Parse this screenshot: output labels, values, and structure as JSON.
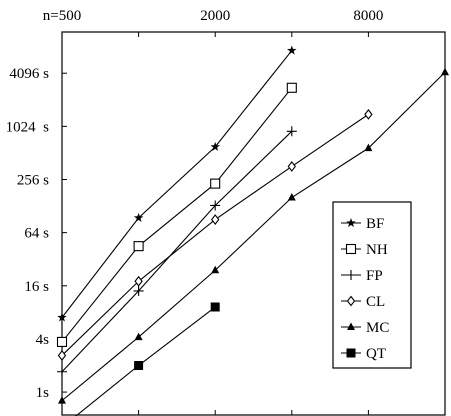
{
  "chart_data": {
    "type": "line",
    "title": "",
    "xlabel": "",
    "ylabel": "",
    "x_scale": "log2",
    "y_scale": "log2",
    "xlim": [
      500,
      16000
    ],
    "ylim": [
      0.55,
      12000
    ],
    "x_ticks": [
      {
        "value": 500,
        "label": "n=500"
      },
      {
        "value": 1000,
        "label": ""
      },
      {
        "value": 2000,
        "label": "2000"
      },
      {
        "value": 4000,
        "label": ""
      },
      {
        "value": 8000,
        "label": "8000"
      },
      {
        "value": 16000,
        "label": ""
      }
    ],
    "y_ticks": [
      {
        "value": 1,
        "label": "1s"
      },
      {
        "value": 4,
        "label": "4s"
      },
      {
        "value": 16,
        "label": "16 s"
      },
      {
        "value": 64,
        "label": "64 s"
      },
      {
        "value": 256,
        "label": "256 s"
      },
      {
        "value": 1024,
        "label": "1024  s"
      },
      {
        "value": 4096,
        "label": "4096 s"
      }
    ],
    "legend_position": "right",
    "series": [
      {
        "name": "BF",
        "marker": "star",
        "x": [
          500,
          1000,
          2000,
          4000
        ],
        "y": [
          7.0,
          94,
          600,
          7400
        ]
      },
      {
        "name": "NH",
        "marker": "square-open",
        "x": [
          500,
          1000,
          2000,
          4000
        ],
        "y": [
          3.7,
          45,
          230,
          2800
        ]
      },
      {
        "name": "FP",
        "marker": "plus",
        "x": [
          500,
          1000,
          2000,
          4000
        ],
        "y": [
          1.7,
          14,
          130,
          900
        ]
      },
      {
        "name": "CL",
        "marker": "diamond-open",
        "x": [
          500,
          1000,
          2000,
          4000,
          8000,
          16000
        ],
        "y": [
          2.6,
          18,
          90,
          360,
          1400,
          null
        ]
      },
      {
        "name": "MC",
        "marker": "triangle",
        "x": [
          500,
          1000,
          2000,
          4000,
          8000,
          16000
        ],
        "y": [
          0.8,
          4.2,
          24,
          160,
          580,
          4200
        ]
      },
      {
        "name": "QT",
        "marker": "square-filled",
        "x": [
          500,
          1000,
          2000
        ],
        "y": [
          0.4,
          2.0,
          9.2
        ]
      }
    ]
  }
}
